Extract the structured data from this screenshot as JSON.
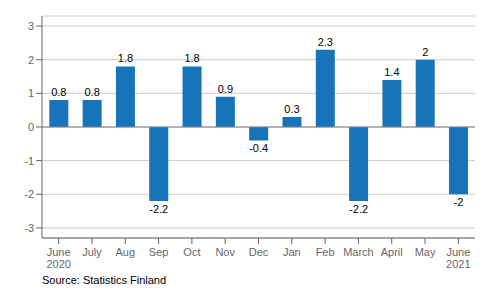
{
  "chart_data": {
    "type": "bar",
    "categories": [
      "June\n2020",
      "July",
      "Aug",
      "Sep",
      "Oct",
      "Nov",
      "Dec",
      "Jan",
      "Feb",
      "March",
      "April",
      "May",
      "June\n2021"
    ],
    "values": [
      0.8,
      0.8,
      1.8,
      -2.2,
      1.8,
      0.9,
      -0.4,
      0.3,
      2.3,
      -2.2,
      1.4,
      2.0,
      -2.0
    ],
    "color": "#1874b8",
    "ylim": [
      -3.3,
      3.3
    ],
    "yticks": [
      -3,
      -2,
      -1,
      0,
      1,
      2,
      3
    ],
    "grid": true,
    "data_labels": true,
    "annotations": [
      "Source: Statistics Finland"
    ]
  }
}
